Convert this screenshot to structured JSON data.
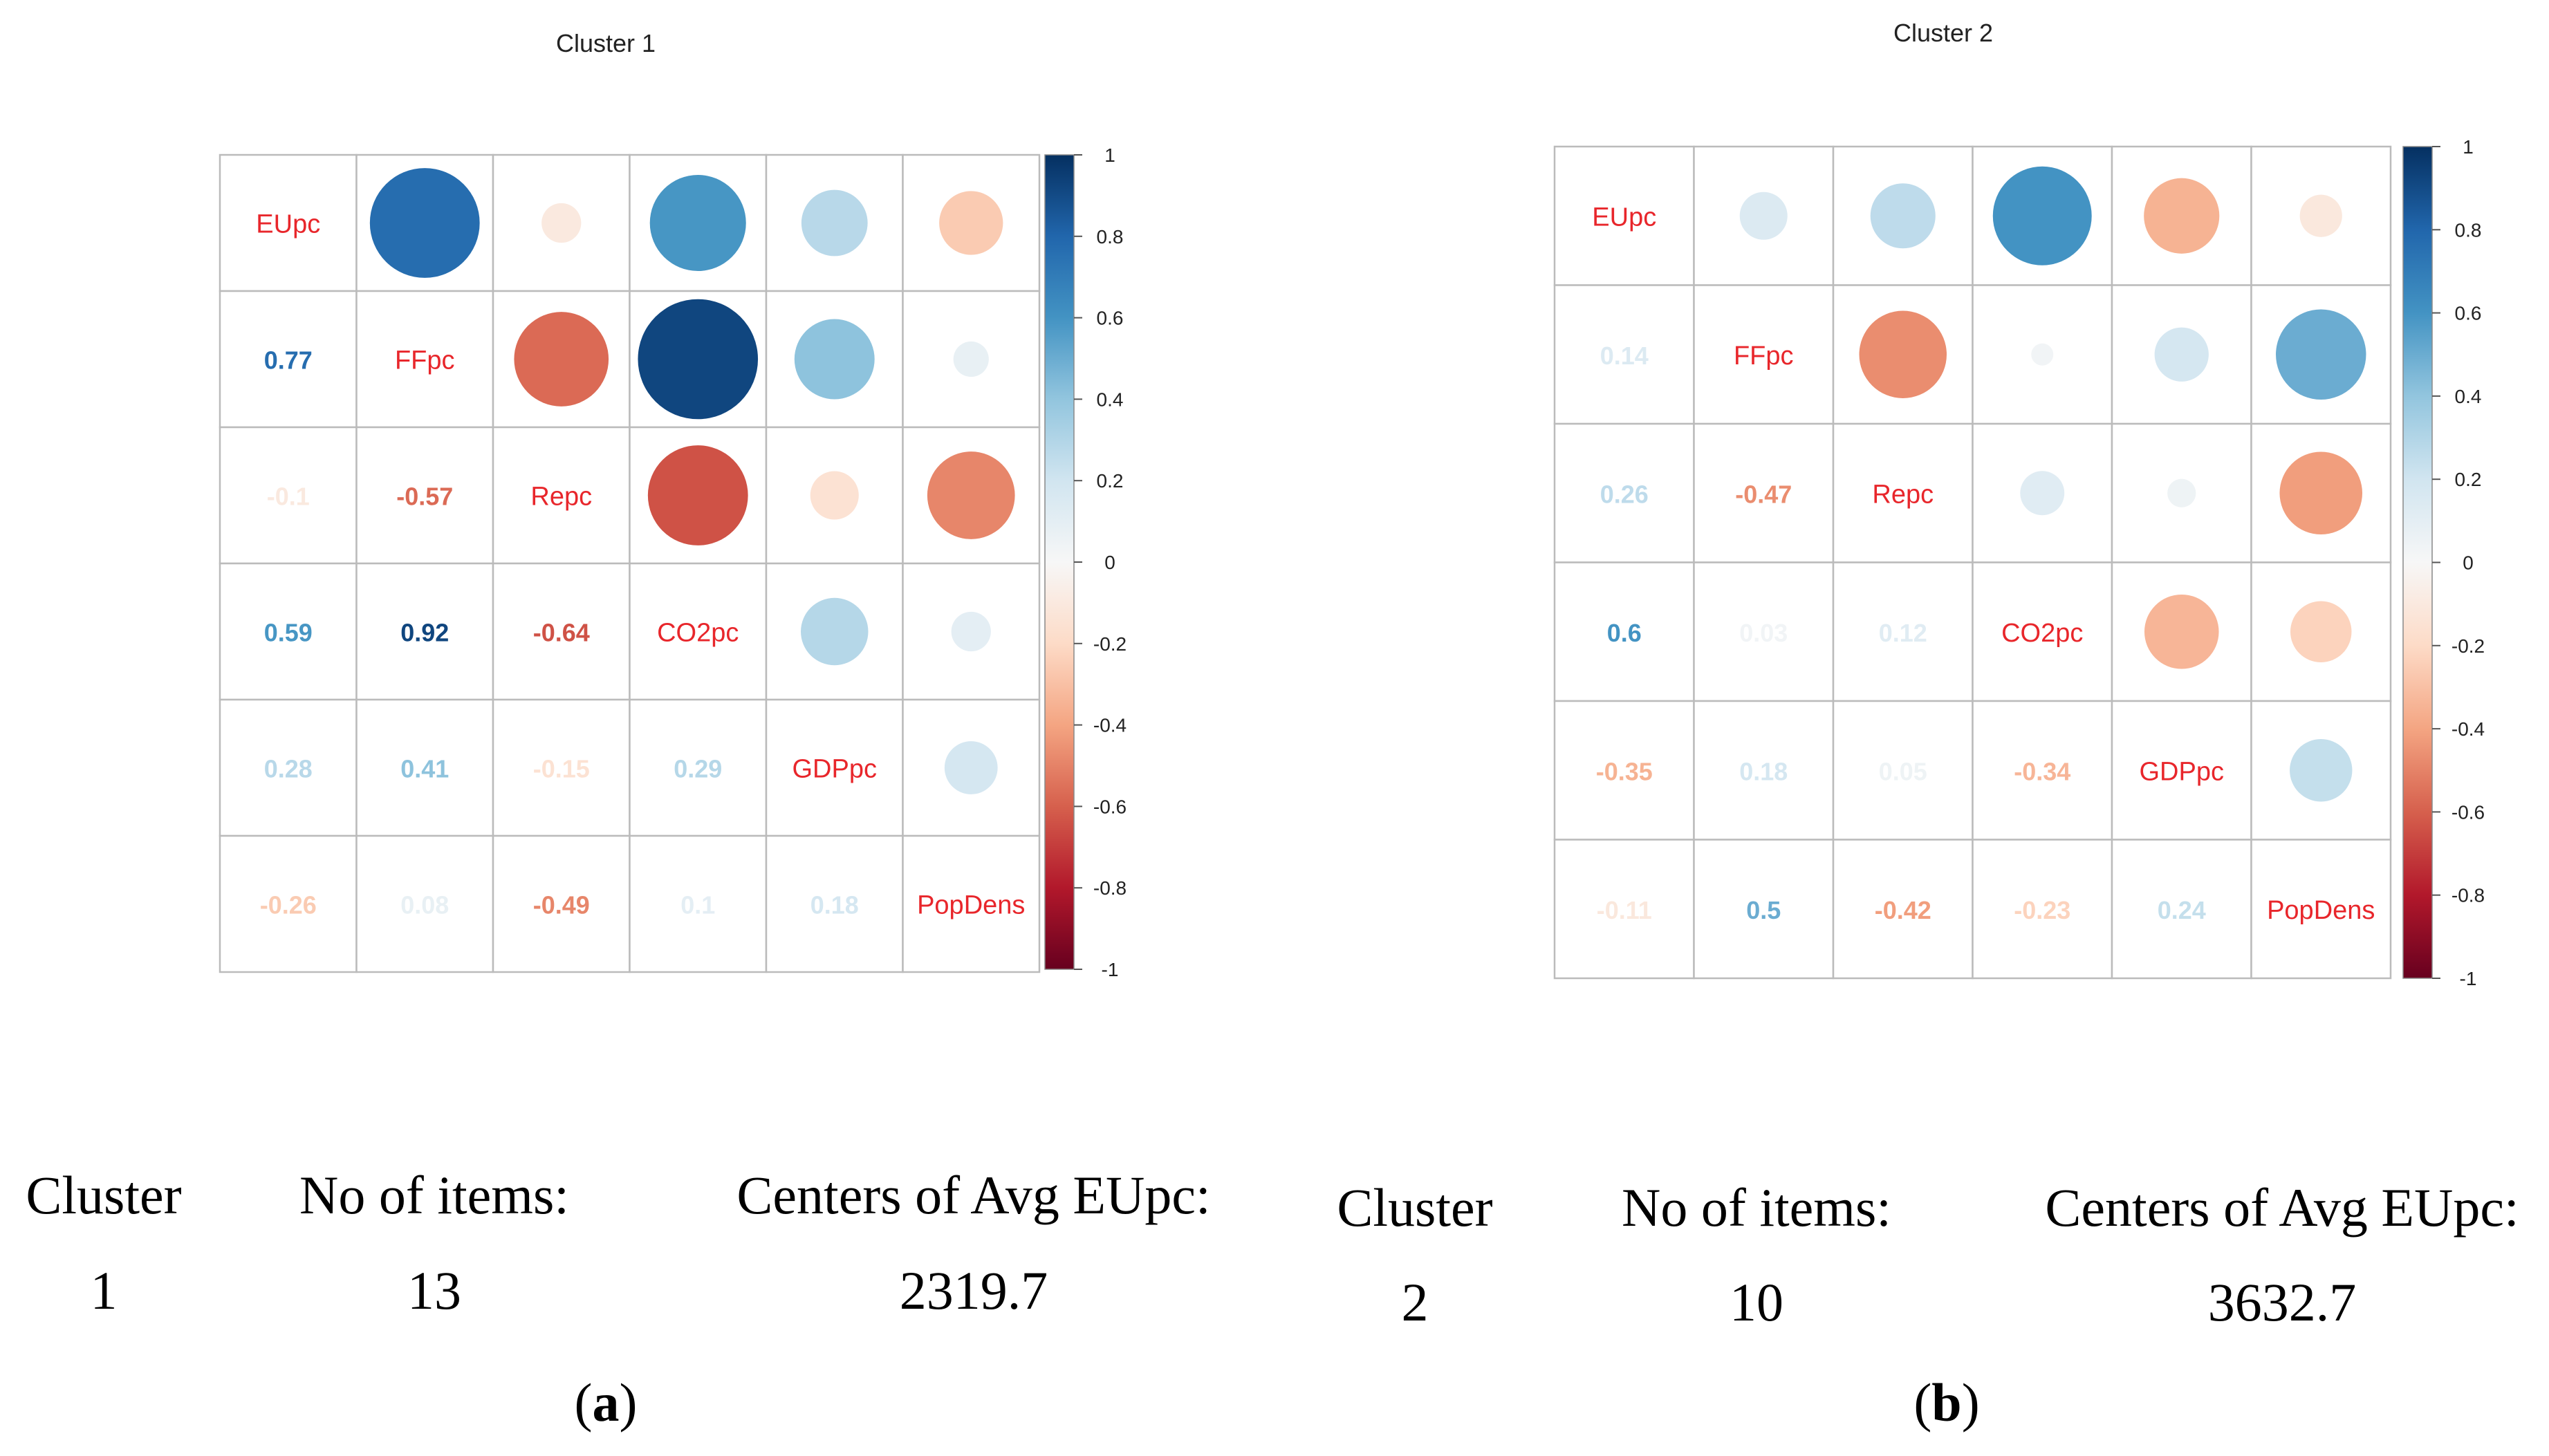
{
  "colors": {
    "neg_strong": "#67001F",
    "neg_mid": "#D6604D",
    "neg_light": "#FDDBC7",
    "zero": "#F7F7F7",
    "pos_light": "#D1E5F0",
    "pos_mid": "#4393C3",
    "pos_strong": "#053061",
    "label_red": "#E8262B",
    "grid": "#BBBBBB"
  },
  "chart_data": [
    {
      "type": "heatmap",
      "panel": "a",
      "title": "Cluster 1",
      "variables": [
        "EUpc",
        "FFpc",
        "Repc",
        "CO2pc",
        "GDPpc",
        "PopDens"
      ],
      "matrix": [
        [
          1,
          0.77,
          -0.1,
          0.59,
          0.28,
          -0.26
        ],
        [
          0.77,
          1,
          -0.57,
          0.92,
          0.41,
          0.08
        ],
        [
          -0.1,
          -0.57,
          1,
          -0.64,
          -0.15,
          -0.49
        ],
        [
          0.59,
          0.92,
          -0.64,
          1,
          0.29,
          0.1
        ],
        [
          0.28,
          0.41,
          -0.15,
          0.29,
          1,
          0.18
        ],
        [
          -0.26,
          0.08,
          -0.49,
          0.1,
          0.18,
          1
        ]
      ],
      "lower_labels": [
        [],
        [
          "0.77"
        ],
        [
          "-0.1",
          "-0.57"
        ],
        [
          "0.59",
          "0.92",
          "-0.64"
        ],
        [
          "0.28",
          "0.41",
          "-0.15",
          "0.29"
        ],
        [
          "-0.26",
          "0.08",
          "-0.49",
          "0.1",
          "0.18"
        ]
      ],
      "colorbar_ticks": [
        "1",
        "0.8",
        "0.6",
        "0.4",
        "0.2",
        "0",
        "-0.2",
        "-0.4",
        "-0.6",
        "-0.8",
        "-1"
      ],
      "colorbar_range": [
        -1,
        1
      ]
    },
    {
      "type": "heatmap",
      "panel": "b",
      "title": "Cluster 2",
      "variables": [
        "EUpc",
        "FFpc",
        "Repc",
        "CO2pc",
        "GDPpc",
        "PopDens"
      ],
      "matrix": [
        [
          1,
          0.14,
          0.26,
          0.6,
          -0.35,
          -0.11
        ],
        [
          0.14,
          1,
          -0.47,
          0.03,
          0.18,
          0.5
        ],
        [
          0.26,
          -0.47,
          1,
          0.12,
          0.05,
          -0.42
        ],
        [
          0.6,
          0.03,
          0.12,
          1,
          -0.34,
          -0.23
        ],
        [
          -0.35,
          0.18,
          0.05,
          -0.34,
          1,
          0.24
        ],
        [
          -0.11,
          0.5,
          -0.42,
          -0.23,
          0.24,
          1
        ]
      ],
      "lower_labels": [
        [],
        [
          "0.14"
        ],
        [
          "0.26",
          "-0.47"
        ],
        [
          "0.6",
          "0.03",
          "0.12"
        ],
        [
          "-0.35",
          "0.18",
          "0.05",
          "-0.34"
        ],
        [
          "-0.11",
          "0.5",
          "-0.42",
          "-0.23",
          "0.24"
        ]
      ],
      "colorbar_ticks": [
        "1",
        "0.8",
        "0.6",
        "0.4",
        "0.2",
        "0",
        "-0.2",
        "-0.4",
        "-0.6",
        "-0.8",
        "-1"
      ],
      "colorbar_range": [
        -1,
        1
      ]
    }
  ],
  "tables": [
    {
      "headers": [
        "Cluster",
        "No of items:",
        "Centers of Avg EUpc:"
      ],
      "values": [
        "1",
        "13",
        "2319.7"
      ],
      "caption_open": "(",
      "caption_letter": "a",
      "caption_close": ")"
    },
    {
      "headers": [
        "Cluster",
        "No of items:",
        "Centers of Avg EUpc:"
      ],
      "values": [
        "2",
        "10",
        "3632.7"
      ],
      "caption_open": "(",
      "caption_letter": "b",
      "caption_close": ")"
    }
  ]
}
